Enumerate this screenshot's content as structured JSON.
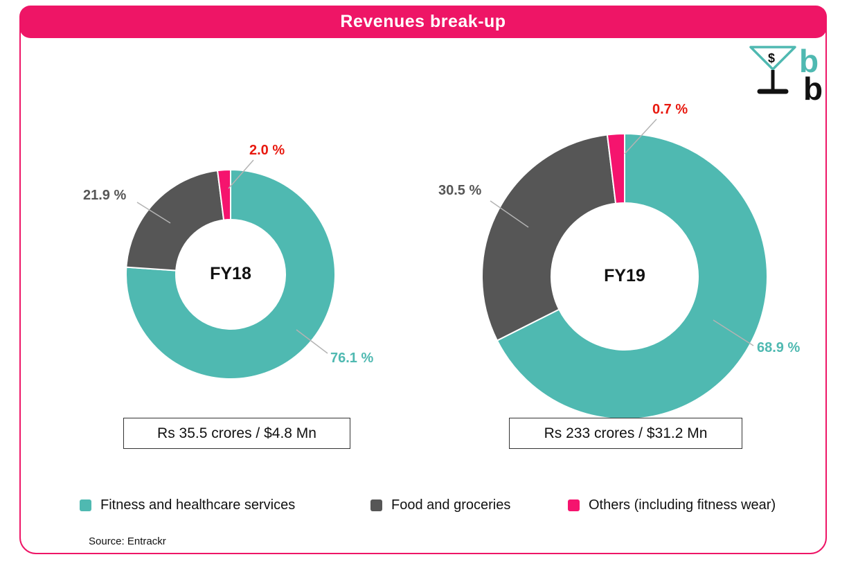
{
  "header": {
    "title": "Revenues break-up"
  },
  "logo": {
    "dollar_sign": "$",
    "letter_top": "b",
    "letter_bottom": "b"
  },
  "chart_data": [
    {
      "type": "donut",
      "period": "FY18",
      "total_label": "Rs 35.5 crores / $4.8 Mn",
      "slices": [
        {
          "name": "Fitness and healthcare services",
          "value": 76.1,
          "label": "76.1 %",
          "color": "#4FB9B1",
          "label_color": "#4FB9B1"
        },
        {
          "name": "Food and groceries",
          "value": 21.9,
          "label": "21.9 %",
          "color": "#565656",
          "label_color": "#565656"
        },
        {
          "name": "Others (including fitness wear)",
          "value": 2.0,
          "label": "2.0 %",
          "color": "#F5146E",
          "label_color": "#E8190F"
        }
      ]
    },
    {
      "type": "donut",
      "period": "FY19",
      "total_label": "Rs 233 crores / $31.2 Mn",
      "slices": [
        {
          "name": "Fitness and healthcare services",
          "value": 68.9,
          "label": "68.9 %",
          "color": "#4FB9B1",
          "label_color": "#4FB9B1"
        },
        {
          "name": "Food and groceries",
          "value": 30.5,
          "label": "30.5 %",
          "color": "#565656",
          "label_color": "#565656"
        },
        {
          "name": "Others (including fitness wear)",
          "value": 0.7,
          "label": "0.7 %",
          "color": "#F5146E",
          "label_color": "#E8190F"
        }
      ]
    }
  ],
  "legend": [
    {
      "label": "Fitness and healthcare services",
      "color": "#4FB9B1"
    },
    {
      "label": "Food and groceries",
      "color": "#565656"
    },
    {
      "label": "Others (including fitness wear)",
      "color": "#F5146E"
    }
  ],
  "source": "Source: Entrackr",
  "colors": {
    "header_bar": "#EE1566",
    "teal": "#4FB9B1",
    "gray": "#565656",
    "pink": "#F5146E",
    "small_slice_label_red": "#E8190F",
    "leader_line": "#b3b3b3"
  }
}
